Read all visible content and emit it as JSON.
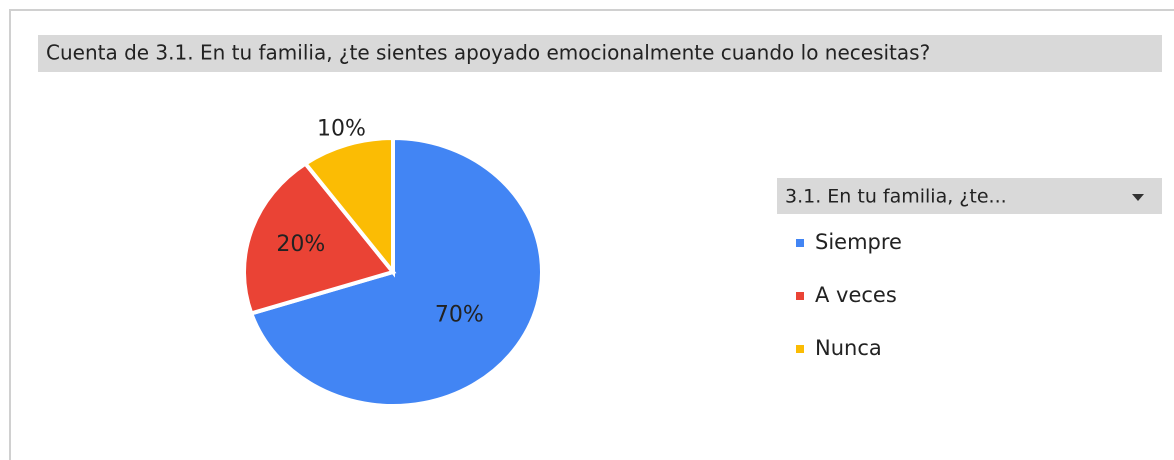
{
  "chart_data": {
    "type": "pie",
    "title": "Cuenta de 3.1. En tu familia, ¿te sientes apoyado emocionalmente cuando lo necesitas?",
    "legend_title": "3.1. En tu familia, ¿te...",
    "categories": [
      "Siempre",
      "A veces",
      "Nunca"
    ],
    "values": [
      70,
      20,
      10
    ],
    "value_labels": [
      "70%",
      "20%",
      "10%"
    ],
    "colors": [
      "#4285f4",
      "#ea4335",
      "#fbbc04"
    ],
    "legend": "right"
  }
}
